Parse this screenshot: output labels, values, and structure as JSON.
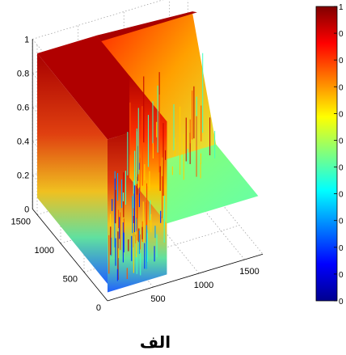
{
  "chart_data": {
    "type": "surface3d",
    "title": "",
    "xlabel": "",
    "ylabel": "",
    "zlabel": "",
    "x_ticks": [
      "500",
      "1000",
      "1500"
    ],
    "y_ticks": [
      "0",
      "500",
      "1000",
      "1500"
    ],
    "z_ticks": [
      "0",
      "0.2",
      "0.4",
      "0.6",
      "0.8",
      "1"
    ],
    "x_range": [
      0,
      1700
    ],
    "y_range": [
      0,
      1600
    ],
    "zlim": [
      0,
      1
    ],
    "colormap": "jet",
    "colors": {
      "low": "#00008f",
      "mid": "#7fff7f",
      "high": "#800000"
    },
    "grid": true,
    "colorbar": {
      "placement": "right",
      "tick_labels": [
        "0",
        "0",
        "0",
        "0",
        "0",
        "0",
        "0",
        "0",
        "0",
        "0",
        "0",
        "1"
      ]
    },
    "surface": {
      "shape": "raised U-shaped ridge on a flat base",
      "base_level": 0.35,
      "ridge_level": 0.95,
      "ridge_outer_x": [
        0,
        650
      ],
      "ridge_outer_y_end": 1500,
      "ridge_inner_y": [
        0,
        800
      ]
    }
  },
  "caption": "الف"
}
